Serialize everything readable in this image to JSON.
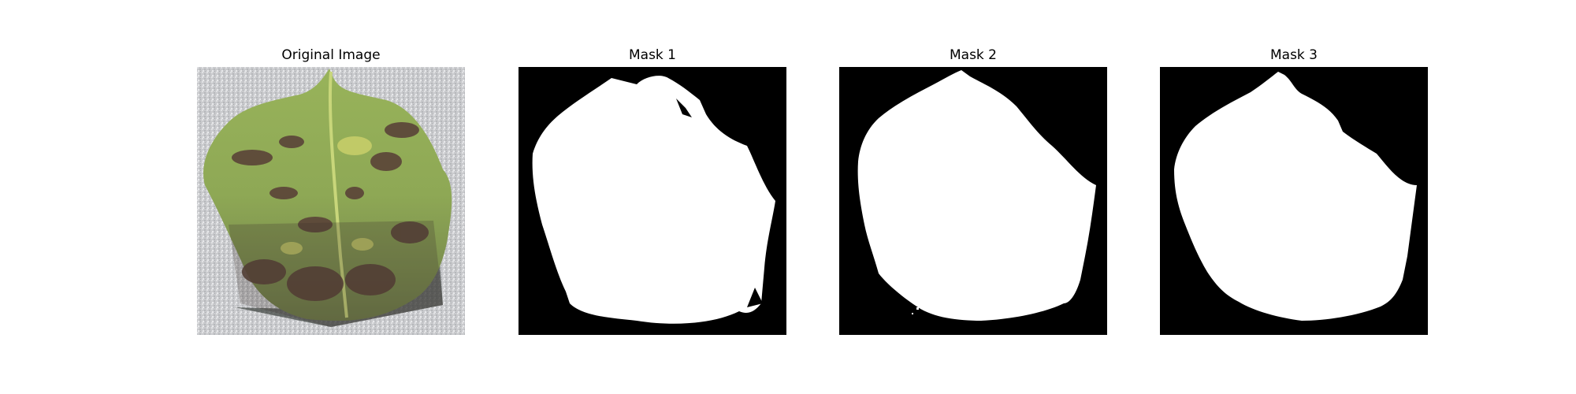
{
  "panels": [
    {
      "title": "Original Image",
      "kind": "photo",
      "content": "leaf-photo"
    },
    {
      "title": "Mask 1",
      "kind": "mask",
      "content": "binary-mask"
    },
    {
      "title": "Mask 2",
      "kind": "mask",
      "content": "binary-mask"
    },
    {
      "title": "Mask 3",
      "kind": "mask",
      "content": "binary-mask"
    }
  ],
  "colors": {
    "background": "#ffffff",
    "mask_background": "#000000",
    "mask_foreground": "#ffffff",
    "photo_background": "#c9cacd",
    "leaf_green": "#8fae52",
    "leaf_dark": "#4d3b34",
    "leaf_yellow": "#b8c05a",
    "shadow": "#2e3430"
  }
}
